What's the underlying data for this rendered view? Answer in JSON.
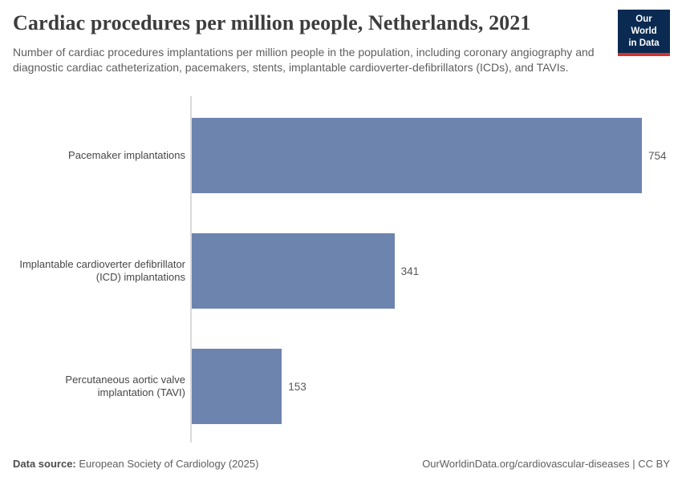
{
  "header": {
    "title": "Cardiac procedures per million people, Netherlands, 2021",
    "subtitle": "Number of cardiac procedures implantations per million people in the population, including coronary angiography and diagnostic cardiac catheterization, pacemakers, stents, implantable cardioverter-defibrillators (ICDs), and TAVIs.",
    "logo": {
      "line1": "Our World",
      "line2": "in Data"
    }
  },
  "chart_data": {
    "type": "bar",
    "orientation": "horizontal",
    "title": "Cardiac procedures per million people, Netherlands, 2021",
    "categories": [
      "Pacemaker implantations",
      "Implantable cardioverter defibrillator\n(ICD) implantations",
      "Percutaneous aortic valve\nimplantation (TAVI)"
    ],
    "values": [
      754,
      341,
      153
    ],
    "value_labels": [
      "754",
      "341",
      "153"
    ],
    "xlabel": "",
    "ylabel": "",
    "xlim": [
      0,
      754
    ],
    "grid": false,
    "legend": false,
    "bar_color": "#6d84ae"
  },
  "footer": {
    "data_source_label": "Data source:",
    "data_source_value": "European Society of Cardiology (2025)",
    "link": "OurWorldinData.org/cardiovascular-diseases",
    "separator": "|",
    "license": "CC BY"
  },
  "colors": {
    "bar": "#6d84ae",
    "axis_line": "#d9d9d9",
    "title_text": "#3d3d3d",
    "body_text": "#5e5e5e",
    "logo_navy": "#0a2a51",
    "logo_red": "#d2342b"
  }
}
